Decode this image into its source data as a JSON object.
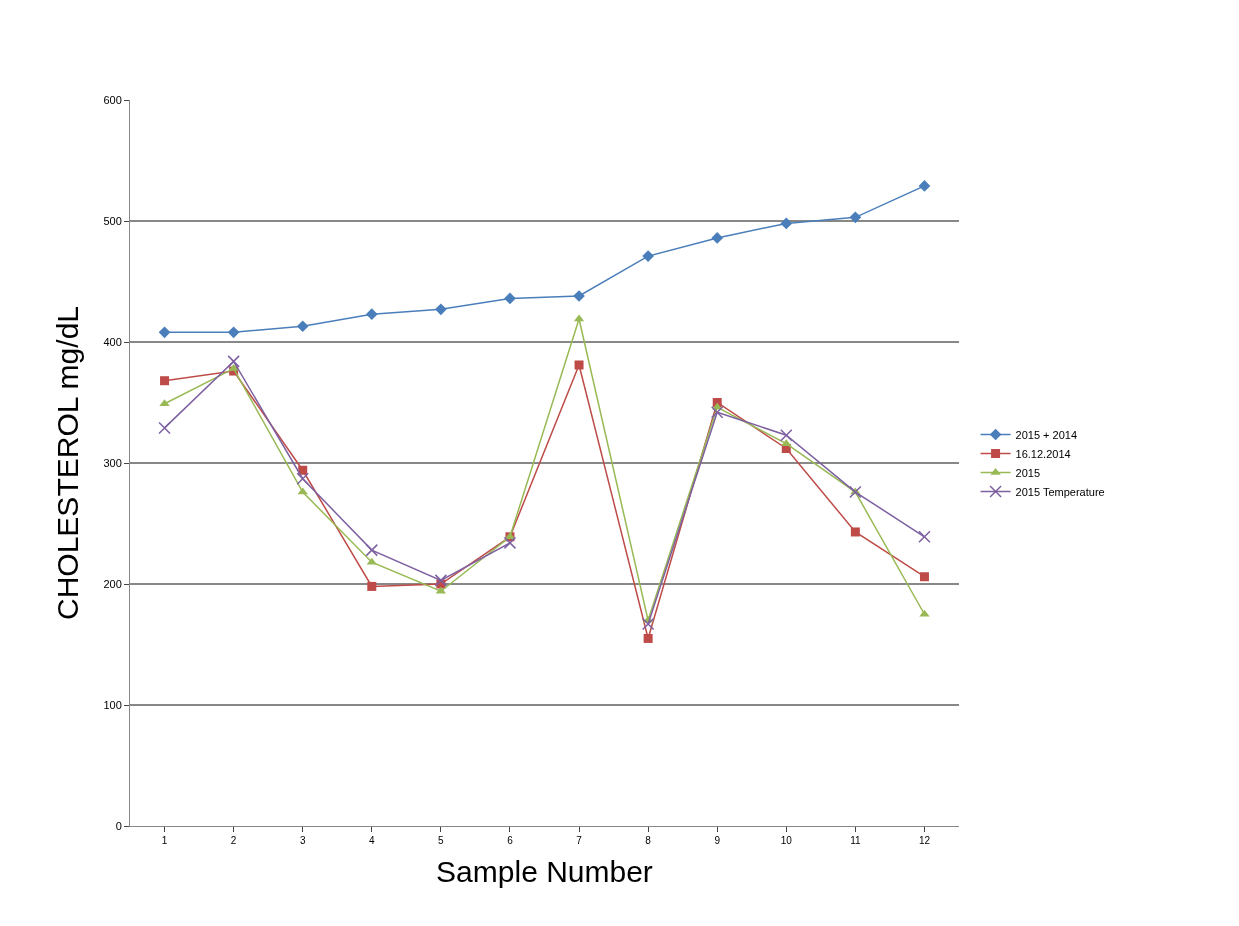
{
  "chart_data": {
    "type": "line",
    "xlabel": "Sample Number",
    "ylabel": "CHOLESTEROL mg/dL",
    "categories": [
      "1",
      "2",
      "3",
      "4",
      "5",
      "6",
      "7",
      "8",
      "9",
      "10",
      "11",
      "12"
    ],
    "ylim": [
      0,
      600
    ],
    "yticks": [
      0,
      100,
      200,
      300,
      400,
      500,
      600
    ],
    "grid": "y",
    "legend": "right",
    "series": [
      {
        "name": "2015 + 2014",
        "color": "#4a7ebb",
        "marker": "diamond",
        "values": [
          408,
          408,
          413,
          423,
          427,
          436,
          438,
          471,
          486,
          498,
          503,
          529
        ]
      },
      {
        "name": "16.12.2014",
        "color": "#be4b48",
        "marker": "square",
        "values": [
          368,
          376,
          294,
          198,
          200,
          239,
          381,
          155,
          350,
          312,
          243,
          206
        ]
      },
      {
        "name": "2015",
        "color": "#98b954",
        "marker": "triangle",
        "values": [
          349,
          378,
          276,
          218,
          194,
          239,
          419,
          170,
          346,
          316,
          276,
          175
        ]
      },
      {
        "name": "2015 Temperature",
        "color": "#7d60a0",
        "marker": "cross",
        "values": [
          329,
          384,
          287,
          228,
          203,
          234,
          null,
          167,
          342,
          323,
          276,
          239
        ]
      }
    ]
  }
}
